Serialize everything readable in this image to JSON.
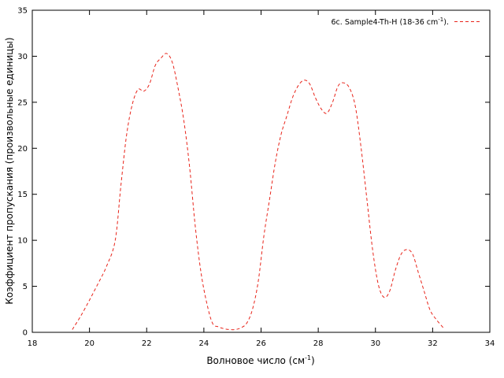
{
  "chart_data": {
    "type": "line",
    "xlabel": "Волновое число (см",
    "xlabel_sup": "-1",
    "xlabel_end": ")",
    "ylabel": "Коэффициент пропускания (произвольные единицы)",
    "xlim": [
      18,
      34
    ],
    "ylim": [
      0,
      35
    ],
    "xticks": [
      "18",
      "20",
      "22",
      "24",
      "26",
      "28",
      "30",
      "32",
      "34"
    ],
    "yticks": [
      "0",
      "5",
      "10",
      "15",
      "20",
      "25",
      "30",
      "35"
    ],
    "grid": false,
    "legend_position": "top-right",
    "series": [
      {
        "name": "6c. Sample4-Th-H (18-36 cm",
        "name_sup": "-1",
        "name_end": ").",
        "color": "#e8241a",
        "style": "dashed",
        "x": [
          19.4,
          19.7,
          20.0,
          20.3,
          20.6,
          20.9,
          21.1,
          21.3,
          21.5,
          21.7,
          21.9,
          22.1,
          22.3,
          22.5,
          22.7,
          22.9,
          23.1,
          23.3,
          23.5,
          23.7,
          23.9,
          24.1,
          24.3,
          24.5,
          24.7,
          24.9,
          25.1,
          25.3,
          25.5,
          25.7,
          25.9,
          26.1,
          26.3,
          26.5,
          26.7,
          26.9,
          27.1,
          27.3,
          27.5,
          27.7,
          27.9,
          28.1,
          28.3,
          28.5,
          28.7,
          28.9,
          29.1,
          29.3,
          29.5,
          29.7,
          29.9,
          30.1,
          30.3,
          30.5,
          30.7,
          30.9,
          31.1,
          31.3,
          31.5,
          31.7,
          31.9,
          32.1,
          32.4
        ],
        "y": [
          0.3,
          1.8,
          3.5,
          5.3,
          7.2,
          10.0,
          16.0,
          21.5,
          24.8,
          26.4,
          26.2,
          27.0,
          29.0,
          29.8,
          30.3,
          29.3,
          26.5,
          23.0,
          18.0,
          11.5,
          6.5,
          3.2,
          1.0,
          0.6,
          0.4,
          0.3,
          0.3,
          0.5,
          1.0,
          2.5,
          5.5,
          10.5,
          14.5,
          18.5,
          21.5,
          23.5,
          25.5,
          26.8,
          27.4,
          27.0,
          25.5,
          24.3,
          23.8,
          25.0,
          26.8,
          27.1,
          26.5,
          24.5,
          20.0,
          14.5,
          9.0,
          5.2,
          3.8,
          4.5,
          6.8,
          8.5,
          9.0,
          8.5,
          6.5,
          4.5,
          2.5,
          1.5,
          0.4
        ]
      }
    ]
  }
}
